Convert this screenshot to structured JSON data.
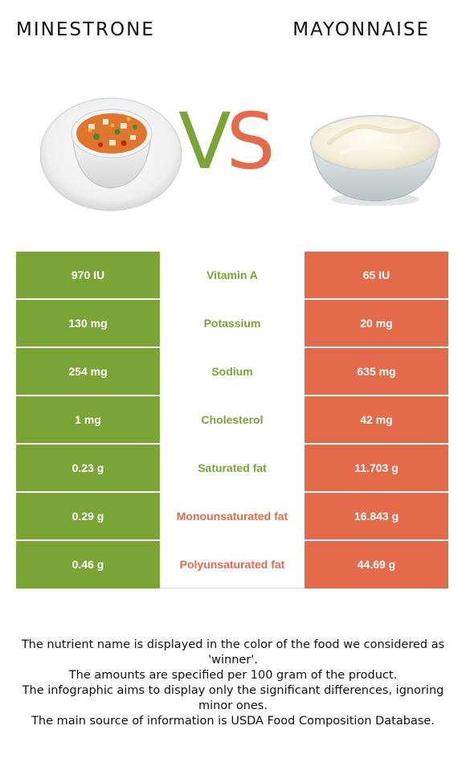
{
  "titles": {
    "left": "MINESTRONE",
    "right": "MAYONNAISE"
  },
  "vs": {
    "v": "V",
    "s": "S"
  },
  "colors": {
    "left_winner": "#7aa536",
    "right_winner": "#e36a4a"
  },
  "images": {
    "left": "minestrone-soup-bowl-image",
    "right": "mayonnaise-bowl-image"
  },
  "rows": [
    {
      "left": "970 IU",
      "nutrient": "Vitamin A",
      "right": "65 IU",
      "winner": "left"
    },
    {
      "left": "130 mg",
      "nutrient": "Potassium",
      "right": "20 mg",
      "winner": "left"
    },
    {
      "left": "254 mg",
      "nutrient": "Sodium",
      "right": "635 mg",
      "winner": "left"
    },
    {
      "left": "1 mg",
      "nutrient": "Cholesterol",
      "right": "42 mg",
      "winner": "left"
    },
    {
      "left": "0.23 g",
      "nutrient": "Saturated fat",
      "right": "11.703 g",
      "winner": "left"
    },
    {
      "left": "0.29 g",
      "nutrient": "Monounsaturated fat",
      "right": "16.843 g",
      "winner": "right"
    },
    {
      "left": "0.46 g",
      "nutrient": "Polyunsaturated fat",
      "right": "44.69 g",
      "winner": "right"
    }
  ],
  "footer": {
    "line1": "The nutrient name is displayed in the color of the food we considered as 'winner'.",
    "line2": "The amounts are specified per 100 gram of the product.",
    "line3": "The infographic aims to display only the significant differences, ignoring minor ones.",
    "line4": "The main source of information is USDA Food Composition Database."
  }
}
